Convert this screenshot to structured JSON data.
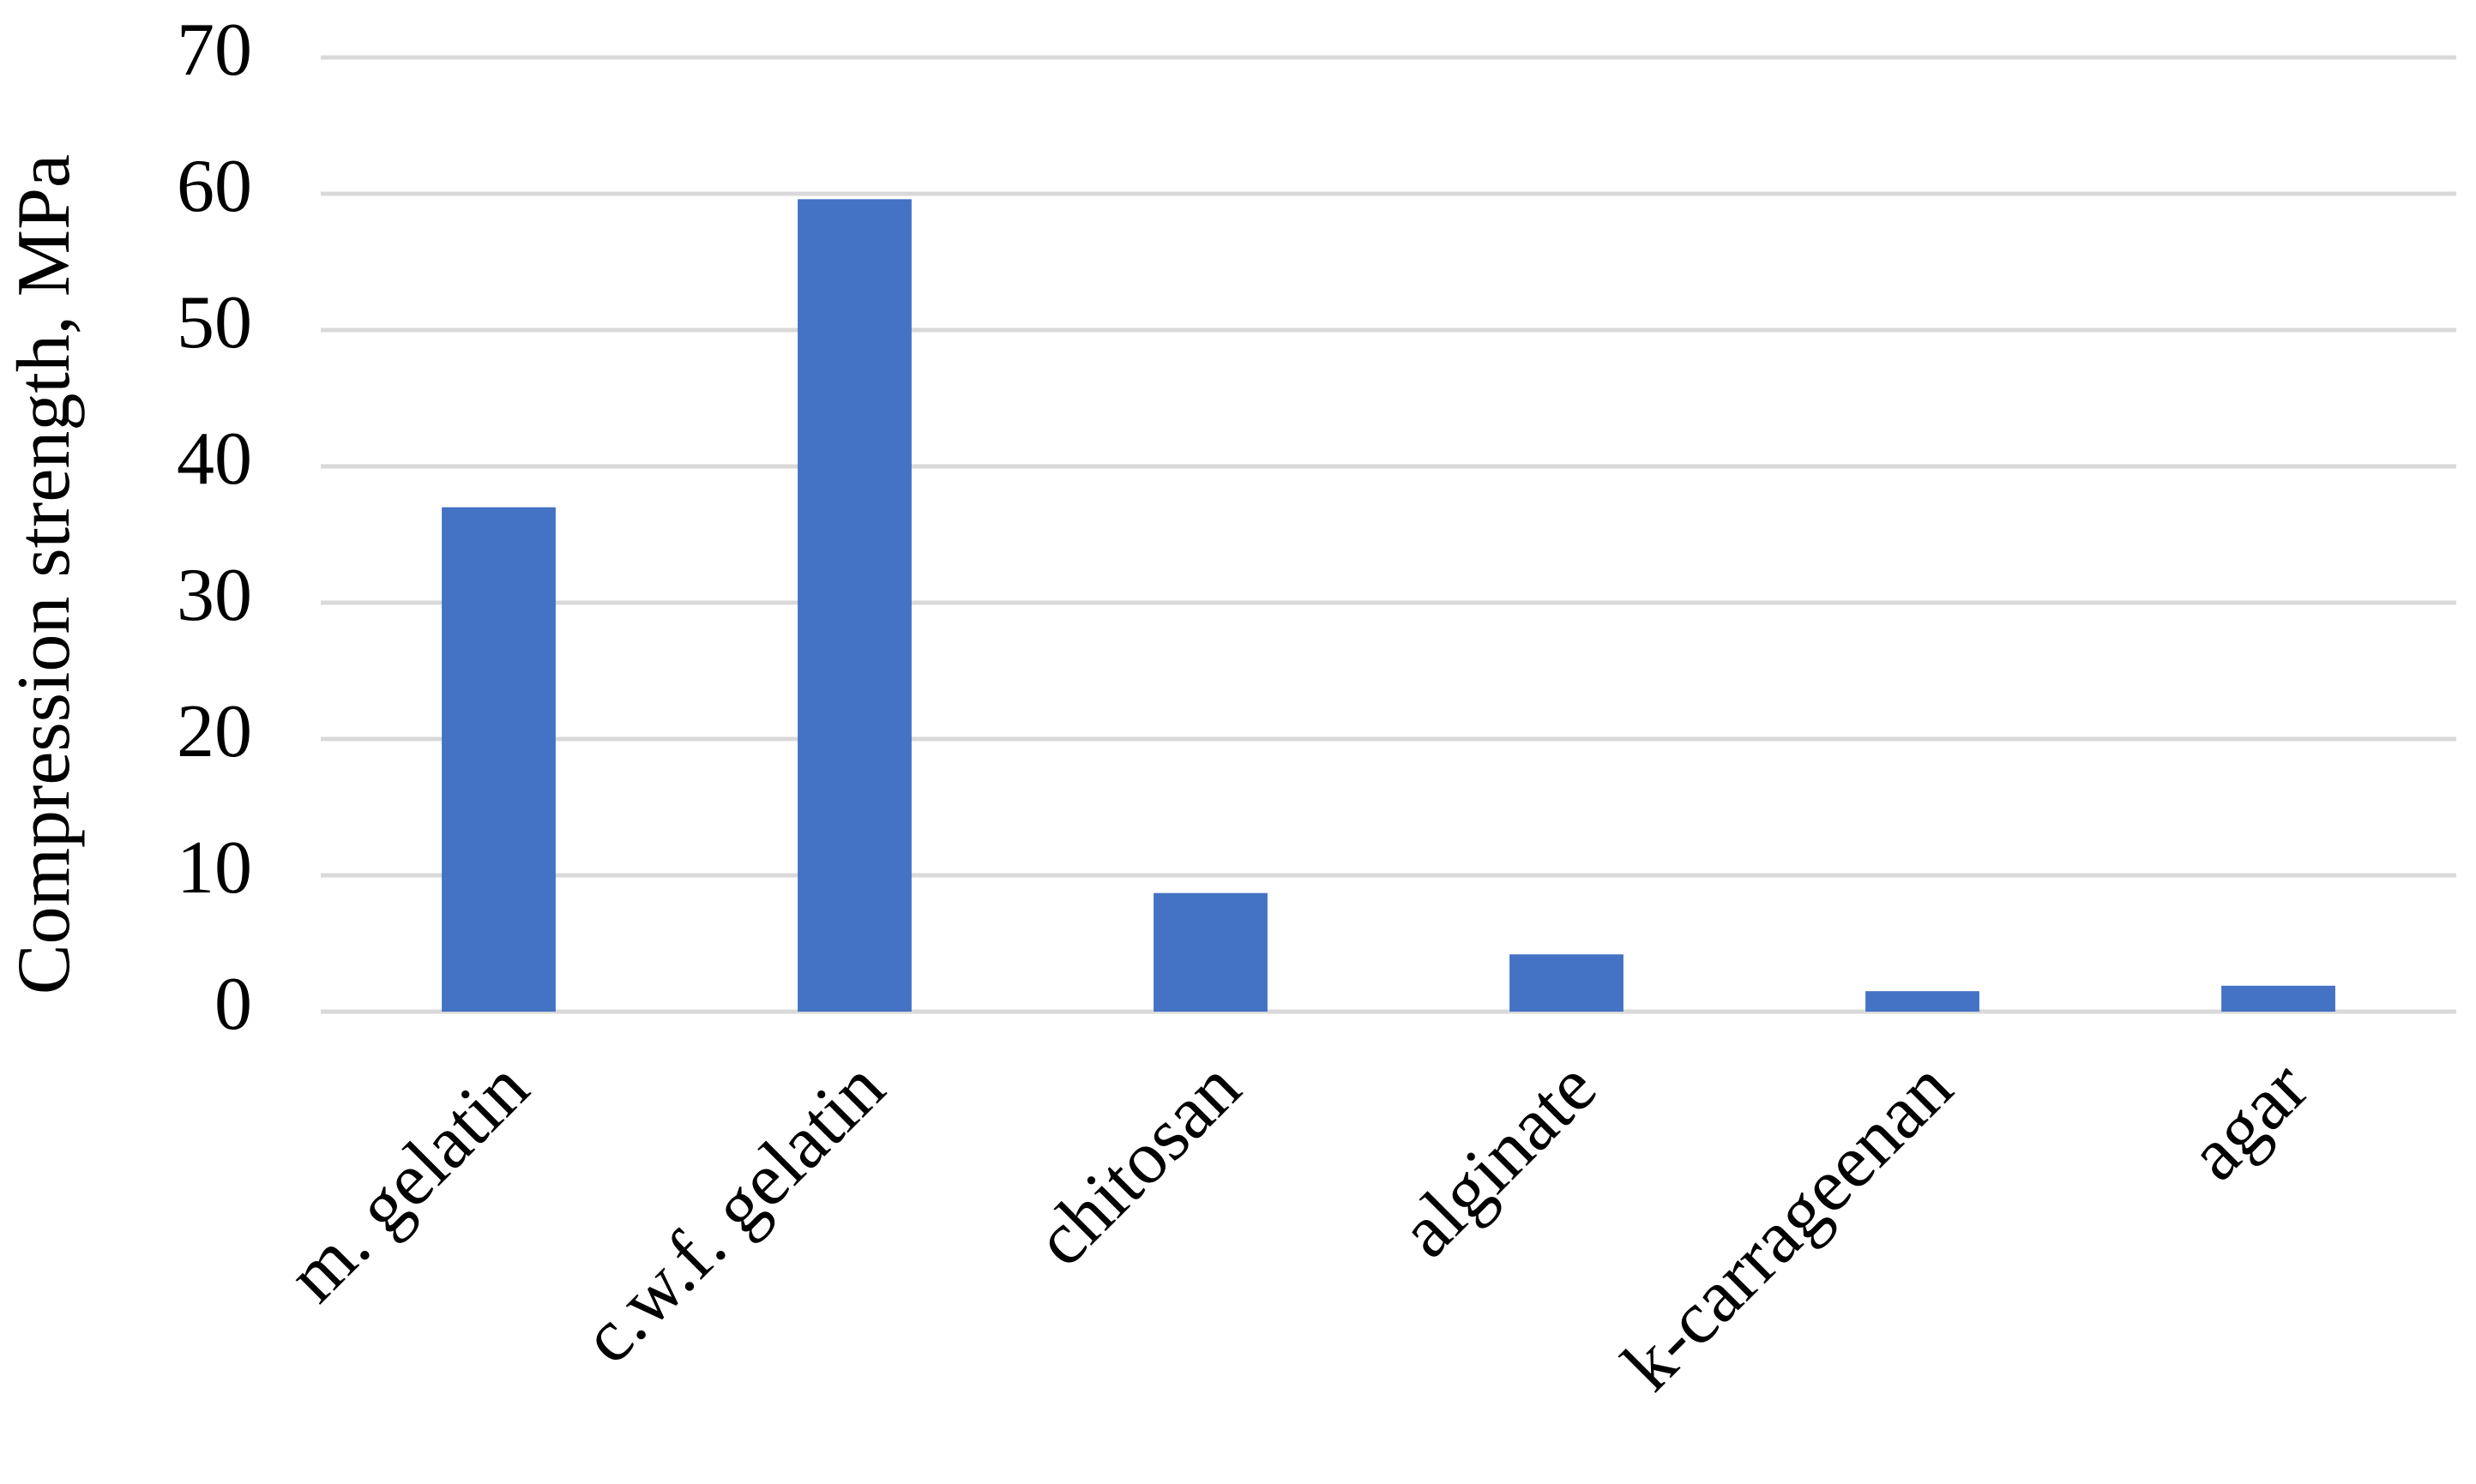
{
  "chart_data": {
    "type": "bar",
    "y_label": "Compression strength, MPa",
    "categories": [
      "m. gelatin",
      "c.w.f. gelatin",
      "chitosan",
      "alginate",
      "k-carrageenan",
      "agar"
    ],
    "values": [
      37.0,
      59.6,
      8.7,
      4.2,
      1.5,
      1.9
    ],
    "color": "#4472c4",
    "ylim": [
      0,
      70
    ],
    "yticks": [
      0,
      10,
      20,
      30,
      40,
      50,
      60,
      70
    ],
    "grid": true
  }
}
